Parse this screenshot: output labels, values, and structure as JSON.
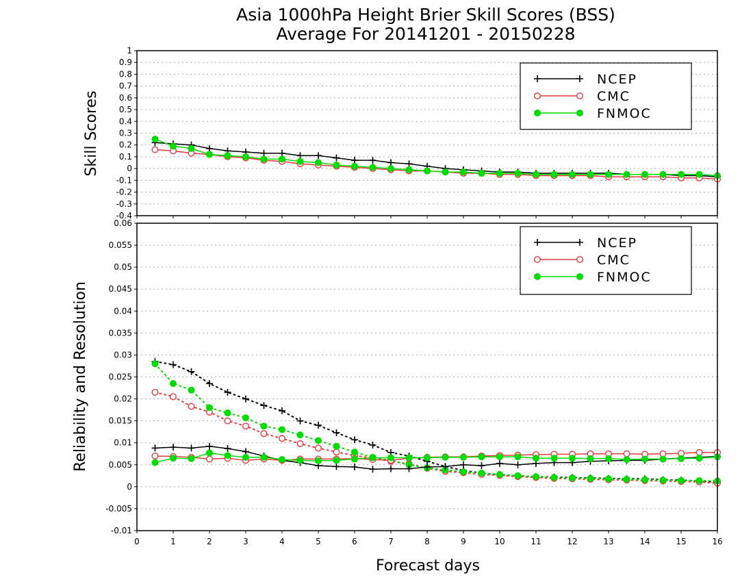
{
  "title": {
    "line1": "Asia 1000hPa Height Brier Skill Scores (BSS)",
    "line2": "Average For 20141201 - 20150228"
  },
  "colors": {
    "NCEP": "#000000",
    "CMC": "#e8383d",
    "FNMOC": "#00dc00",
    "grid": "#a8a8a8"
  },
  "chart_data": [
    {
      "type": "line",
      "ylabel": "Skill Scores",
      "xlabel": "",
      "xlim": [
        0,
        16
      ],
      "ylim": [
        -0.4,
        1
      ],
      "x_ticks": [
        "0",
        "1",
        "2",
        "3",
        "4",
        "5",
        "6",
        "7",
        "8",
        "9",
        "10",
        "11",
        "12",
        "13",
        "14",
        "15",
        "16"
      ],
      "y_ticks": [
        "1",
        "0.9",
        "0.8",
        "0.7",
        "0.6",
        "0.5",
        "0.4",
        "0.3",
        "0.2",
        "0.1",
        "0",
        "-0.1",
        "-0.2",
        "-0.3",
        "-0.4"
      ],
      "grid": true,
      "legend": "top-right",
      "x": [
        0.5,
        1,
        1.5,
        2,
        2.5,
        3,
        3.5,
        4,
        4.5,
        5,
        5.5,
        6,
        6.5,
        7,
        7.5,
        8,
        8.5,
        9,
        9.5,
        10,
        10.5,
        11,
        11.5,
        12,
        12.5,
        13,
        13.5,
        14,
        14.5,
        15,
        15.5,
        16
      ],
      "series": [
        {
          "name": "NCEP",
          "style": "solid",
          "marker": "plus",
          "values": [
            0.22,
            0.21,
            0.2,
            0.17,
            0.15,
            0.14,
            0.13,
            0.13,
            0.11,
            0.11,
            0.09,
            0.07,
            0.07,
            0.05,
            0.04,
            0.02,
            0.0,
            -0.01,
            -0.02,
            -0.03,
            -0.03,
            -0.04,
            -0.04,
            -0.04,
            -0.04,
            -0.04,
            -0.05,
            -0.05,
            -0.05,
            -0.06,
            -0.06,
            -0.07
          ]
        },
        {
          "name": "CMC",
          "style": "solid",
          "marker": "circle-open",
          "values": [
            0.16,
            0.15,
            0.13,
            0.12,
            0.1,
            0.09,
            0.07,
            0.06,
            0.04,
            0.03,
            0.02,
            0.01,
            0.0,
            -0.01,
            -0.02,
            -0.02,
            -0.03,
            -0.04,
            -0.04,
            -0.05,
            -0.05,
            -0.06,
            -0.06,
            -0.06,
            -0.06,
            -0.07,
            -0.07,
            -0.07,
            -0.07,
            -0.08,
            -0.08,
            -0.09
          ]
        },
        {
          "name": "FNMOC",
          "style": "solid",
          "marker": "circle-filled",
          "values": [
            0.25,
            0.19,
            0.17,
            0.12,
            0.11,
            0.1,
            0.08,
            0.08,
            0.06,
            0.05,
            0.03,
            0.02,
            0.01,
            0.0,
            -0.01,
            -0.02,
            -0.03,
            -0.03,
            -0.04,
            -0.04,
            -0.04,
            -0.05,
            -0.05,
            -0.05,
            -0.05,
            -0.05,
            -0.05,
            -0.05,
            -0.05,
            -0.05,
            -0.05,
            -0.06
          ]
        }
      ]
    },
    {
      "type": "line",
      "ylabel": "Reliability and Resolution",
      "xlabel": "Forecast days",
      "xlim": [
        0,
        16
      ],
      "ylim": [
        -0.01,
        0.06
      ],
      "x_ticks": [
        "0",
        "1",
        "2",
        "3",
        "4",
        "5",
        "6",
        "7",
        "8",
        "9",
        "10",
        "11",
        "12",
        "13",
        "14",
        "15",
        "16"
      ],
      "y_ticks": [
        "0.06",
        "0.055",
        "0.05",
        "0.045",
        "0.04",
        "0.035",
        "0.03",
        "0.025",
        "0.02",
        "0.015",
        "0.01",
        "0.005",
        "0",
        "-0.005",
        "-0.01"
      ],
      "grid": true,
      "legend": "top-right",
      "x": [
        0.5,
        1,
        1.5,
        2,
        2.5,
        3,
        3.5,
        4,
        4.5,
        5,
        5.5,
        6,
        6.5,
        7,
        7.5,
        8,
        8.5,
        9,
        9.5,
        10,
        10.5,
        11,
        11.5,
        12,
        12.5,
        13,
        13.5,
        14,
        14.5,
        15,
        15.5,
        16
      ],
      "series": [
        {
          "name": "NCEP",
          "style": "dotted",
          "marker": "plus",
          "values": [
            0.0285,
            0.0278,
            0.0262,
            0.0235,
            0.0215,
            0.02,
            0.0185,
            0.0173,
            0.015,
            0.014,
            0.0123,
            0.0107,
            0.0095,
            0.0078,
            0.007,
            0.0058,
            0.0046,
            0.0037,
            0.0031,
            0.0027,
            0.0025,
            0.0023,
            0.0022,
            0.0021,
            0.002,
            0.0019,
            0.0018,
            0.0018,
            0.0016,
            0.0015,
            0.0013,
            0.001
          ]
        },
        {
          "name": "CMC",
          "style": "dotted",
          "marker": "circle-open",
          "values": [
            0.0215,
            0.0205,
            0.0183,
            0.017,
            0.015,
            0.0138,
            0.0121,
            0.011,
            0.0098,
            0.0088,
            0.0079,
            0.0071,
            0.0065,
            0.0058,
            0.0052,
            0.0042,
            0.0035,
            0.0032,
            0.0028,
            0.0026,
            0.0023,
            0.0021,
            0.0019,
            0.0018,
            0.0017,
            0.0016,
            0.0015,
            0.0014,
            0.0013,
            0.0012,
            0.0011,
            0.0008
          ]
        },
        {
          "name": "FNMOC",
          "style": "dotted",
          "marker": "circle-filled",
          "values": [
            0.028,
            0.0235,
            0.022,
            0.018,
            0.0168,
            0.0157,
            0.0138,
            0.013,
            0.0118,
            0.0105,
            0.0092,
            0.0079,
            0.0067,
            0.006,
            0.005,
            0.0043,
            0.0038,
            0.0034,
            0.0031,
            0.0028,
            0.0025,
            0.0023,
            0.0021,
            0.002,
            0.0019,
            0.0018,
            0.0017,
            0.0016,
            0.0015,
            0.0014,
            0.0014,
            0.0013
          ]
        },
        {
          "name": "NCEP",
          "style": "solid",
          "marker": "plus",
          "values": [
            0.0088,
            0.009,
            0.0088,
            0.0092,
            0.0087,
            0.008,
            0.007,
            0.006,
            0.0055,
            0.0048,
            0.0046,
            0.0045,
            0.004,
            0.0041,
            0.0041,
            0.0045,
            0.0046,
            0.005,
            0.0048,
            0.0053,
            0.005,
            0.0053,
            0.0055,
            0.0055,
            0.0058,
            0.0059,
            0.006,
            0.006,
            0.0063,
            0.0065,
            0.0067,
            0.0069
          ]
        },
        {
          "name": "CMC",
          "style": "solid",
          "marker": "circle-open",
          "values": [
            0.007,
            0.0069,
            0.0067,
            0.0063,
            0.0065,
            0.006,
            0.0063,
            0.006,
            0.0063,
            0.0063,
            0.0063,
            0.0064,
            0.0062,
            0.006,
            0.0065,
            0.0067,
            0.0068,
            0.0068,
            0.007,
            0.0071,
            0.0072,
            0.0073,
            0.0074,
            0.0074,
            0.0075,
            0.0075,
            0.0075,
            0.0074,
            0.0075,
            0.0076,
            0.0078,
            0.0078
          ]
        },
        {
          "name": "FNMOC",
          "style": "solid",
          "marker": "circle-filled",
          "values": [
            0.0055,
            0.0065,
            0.0064,
            0.0077,
            0.0071,
            0.0067,
            0.0067,
            0.0062,
            0.006,
            0.0059,
            0.006,
            0.0063,
            0.0066,
            0.0066,
            0.0066,
            0.0066,
            0.0067,
            0.0067,
            0.0068,
            0.0068,
            0.0068,
            0.0065,
            0.0065,
            0.0065,
            0.0064,
            0.0064,
            0.0062,
            0.0063,
            0.0063,
            0.0064,
            0.0065,
            0.0068
          ]
        }
      ]
    }
  ],
  "legend": {
    "items": [
      {
        "name": "NCEP",
        "label": "NCEP",
        "marker": "plus"
      },
      {
        "name": "CMC",
        "label": "CMC",
        "marker": "circle-open"
      },
      {
        "name": "FNMOC",
        "label": "FNMOC",
        "marker": "circle-filled"
      }
    ]
  }
}
